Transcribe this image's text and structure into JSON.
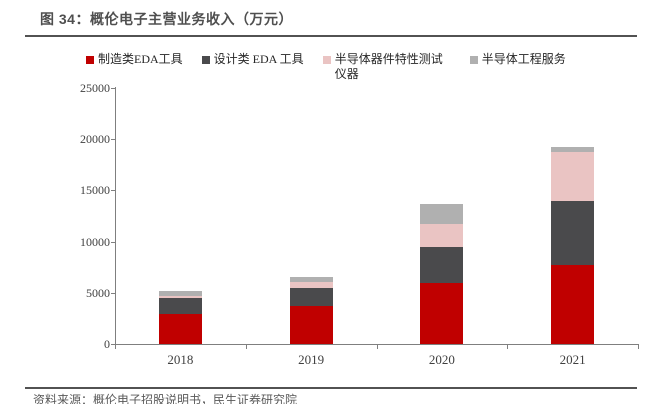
{
  "figure": {
    "title": "图 34：概伦电子主营业务收入（万元）",
    "source": "资料来源：概伦电子招股说明书，民生证券研究院"
  },
  "colors": {
    "series_red": "#C00000",
    "series_dark_gray": "#4A4A4C",
    "series_pink": "#EAC4C3",
    "series_light_gray": "#B0B0B0",
    "rule": "#525252",
    "axis": "#7F7F7F"
  },
  "chart_data": {
    "type": "bar",
    "stacked": true,
    "title": "概伦电子主营业务收入（万元）",
    "categories": [
      "2018",
      "2019",
      "2020",
      "2021"
    ],
    "series": [
      {
        "name": "制造类EDA工具",
        "color": "#C00000",
        "values": [
          2940,
          3700,
          5910,
          7700
        ]
      },
      {
        "name": "设计类 EDA 工具",
        "color": "#4A4A4C",
        "values": [
          1510,
          1740,
          3540,
          6290
        ]
      },
      {
        "name": "半导体器件特性测试仪器",
        "color": "#EAC4C3",
        "values": [
          220,
          650,
          2290,
          4740
        ]
      },
      {
        "name": "半导体工程服务",
        "color": "#B0B0B0",
        "values": [
          520,
          450,
          1950,
          460
        ]
      }
    ],
    "xlabel": "",
    "ylabel": "",
    "ylim": [
      0,
      25000
    ],
    "yticks": [
      0,
      5000,
      10000,
      15000,
      20000,
      25000
    ],
    "legend_position": "top",
    "grid": false
  }
}
